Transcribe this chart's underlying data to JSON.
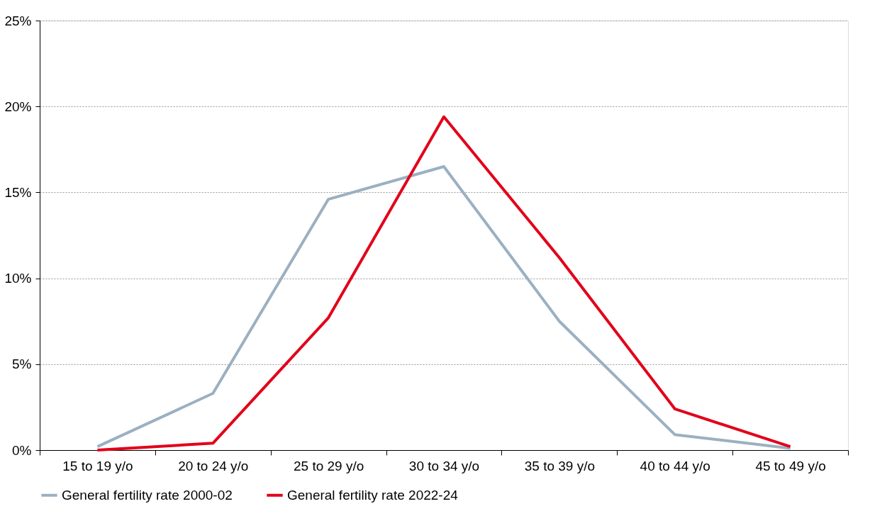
{
  "chart_data": {
    "type": "line",
    "categories": [
      "15 to 19 y/o",
      "20 to 24 y/o",
      "25 to 29 y/o",
      "30 to 34 y/o",
      "35 to 39 y/o",
      "40 to 44 y/o",
      "45 to 49 y/o"
    ],
    "series": [
      {
        "name": "General fertility rate 2000-02",
        "color": "#9bb0c1",
        "values": [
          0.2,
          3.3,
          14.6,
          16.5,
          7.5,
          0.9,
          0.1
        ]
      },
      {
        "name": "General fertility rate 2022-24",
        "color": "#e2001a",
        "values": [
          0.0,
          0.4,
          7.7,
          19.4,
          11.2,
          2.4,
          0.2
        ]
      }
    ],
    "ylim": [
      0,
      25
    ],
    "yticks": [
      {
        "value": 0,
        "label": "0%"
      },
      {
        "value": 5,
        "label": "5%"
      },
      {
        "value": 10,
        "label": "10%"
      },
      {
        "value": 15,
        "label": "15%"
      },
      {
        "value": 20,
        "label": "20%"
      },
      {
        "value": 25,
        "label": "25%"
      }
    ],
    "grid": "y",
    "legend": "bottom",
    "marker": "none",
    "line_style": "solid"
  }
}
